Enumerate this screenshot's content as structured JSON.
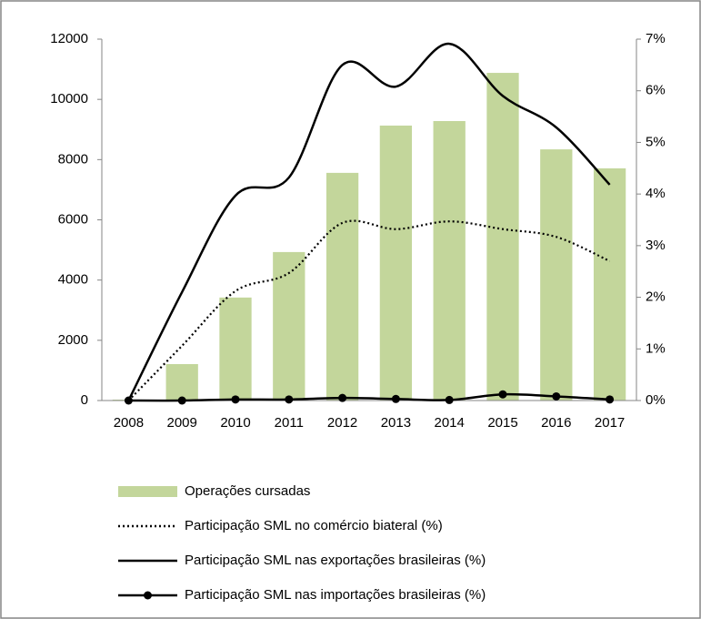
{
  "chart_data": {
    "type": "combo",
    "categories": [
      "2008",
      "2009",
      "2010",
      "2011",
      "2012",
      "2013",
      "2014",
      "2015",
      "2016",
      "2017"
    ],
    "series": [
      {
        "name": "Operações cursadas",
        "type": "bar",
        "color": "#c3d69b",
        "axis": "y",
        "values": [
          30,
          1210,
          3420,
          4930,
          7560,
          9130,
          9280,
          10880,
          8340,
          7710
        ]
      },
      {
        "name": "Participação SML no comércio biateral (%)",
        "type": "line",
        "style": "dotted",
        "color": "#000000",
        "axis": "y2",
        "values": [
          0,
          1.06,
          2.12,
          2.47,
          3.44,
          3.32,
          3.47,
          3.32,
          3.17,
          2.7
        ]
      },
      {
        "name": "Participação SML nas exportações brasileiras (%)",
        "type": "line",
        "style": "solid",
        "color": "#000000",
        "axis": "y2",
        "values": [
          0,
          2.1,
          3.97,
          4.32,
          6.5,
          6.08,
          6.91,
          5.9,
          5.29,
          4.18
        ]
      },
      {
        "name": "Participação SML nas importações brasileiras (%)",
        "type": "line",
        "style": "solid",
        "marker": "circle",
        "color": "#000000",
        "axis": "y2",
        "values": [
          0,
          0,
          0.02,
          0.02,
          0.05,
          0.03,
          0.01,
          0.12,
          0.08,
          0.02
        ]
      }
    ],
    "ylim": [
      0,
      12000
    ],
    "yticks": [
      0,
      2000,
      4000,
      6000,
      8000,
      10000,
      12000
    ],
    "y2lim": [
      0,
      7
    ],
    "y2ticks": [
      {
        "value": 0,
        "label": "0%"
      },
      {
        "value": 1,
        "label": "1%"
      },
      {
        "value": 2,
        "label": "2%"
      },
      {
        "value": 3,
        "label": "3%"
      },
      {
        "value": 4,
        "label": "4%"
      },
      {
        "value": 5,
        "label": "5%"
      },
      {
        "value": 6,
        "label": "6%"
      },
      {
        "value": 7,
        "label": "7%"
      }
    ],
    "grid": false,
    "legend": "bottom"
  }
}
